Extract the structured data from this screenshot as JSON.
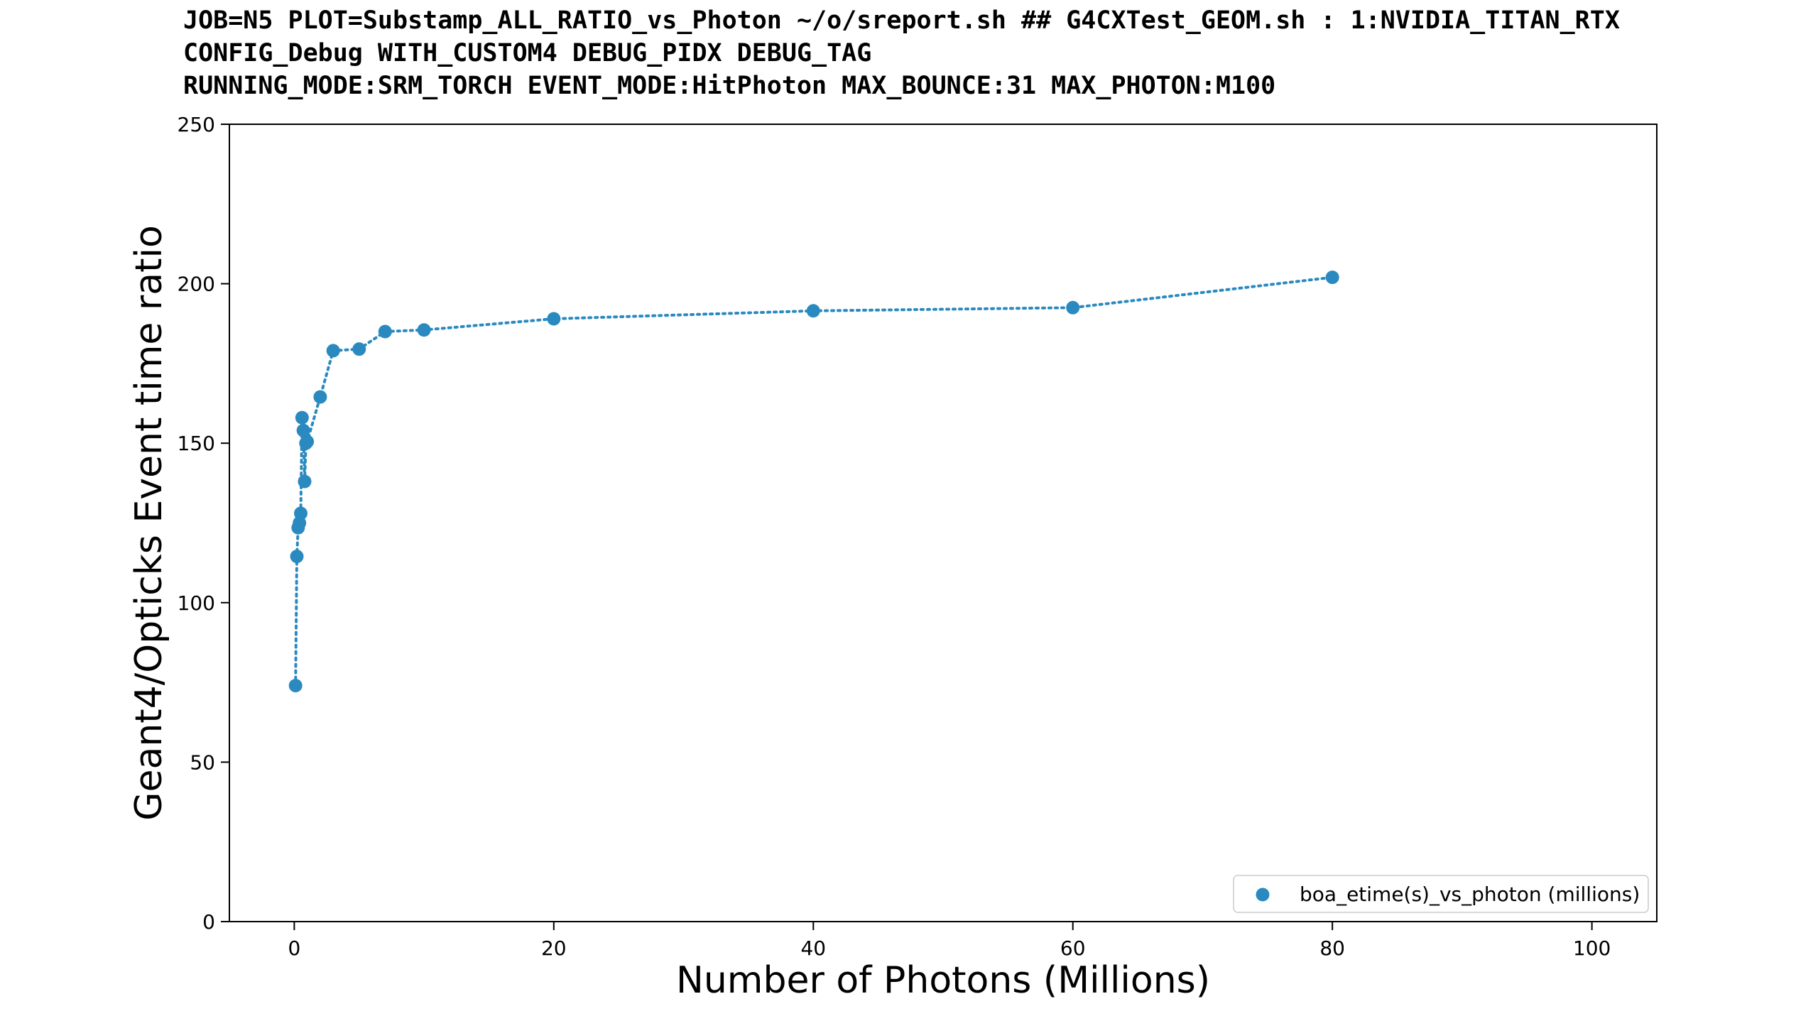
{
  "title_lines": [
    "JOB=N5 PLOT=Substamp_ALL_RATIO_vs_Photon ~/o/sreport.sh ## G4CXTest_GEOM.sh : 1:NVIDIA_TITAN_RTX",
    "CONFIG_Debug WITH_CUSTOM4 DEBUG_PIDX DEBUG_TAG",
    "RUNNING_MODE:SRM_TORCH EVENT_MODE:HitPhoton MAX_BOUNCE:31 MAX_PHOTON:M100"
  ],
  "chart_data": {
    "type": "scatter",
    "title": "",
    "xlabel": "Number of Photons (Millions)",
    "ylabel": "Geant4/Opticks Event time ratio",
    "xlim": [
      -5,
      105
    ],
    "ylim": [
      0,
      250
    ],
    "xticks": [
      0,
      20,
      40,
      60,
      80,
      100
    ],
    "yticks": [
      0,
      50,
      100,
      150,
      200,
      250
    ],
    "grid": false,
    "legend_position": "lower-right",
    "line_style": "dotted",
    "color": "#2a8abf",
    "series": [
      {
        "name": "boa_etime(s)_vs_photon (millions)",
        "x": [
          0.1,
          0.2,
          0.3,
          0.4,
          0.5,
          0.6,
          0.7,
          0.8,
          0.9,
          1,
          2,
          3,
          5,
          7,
          10,
          20,
          40,
          60,
          80
        ],
        "y": [
          74,
          114.5,
          123.5,
          125,
          128,
          158,
          154,
          138,
          150,
          150.5,
          164.5,
          179,
          179.5,
          185,
          185.5,
          189,
          191.5,
          192.5,
          202
        ]
      }
    ]
  }
}
